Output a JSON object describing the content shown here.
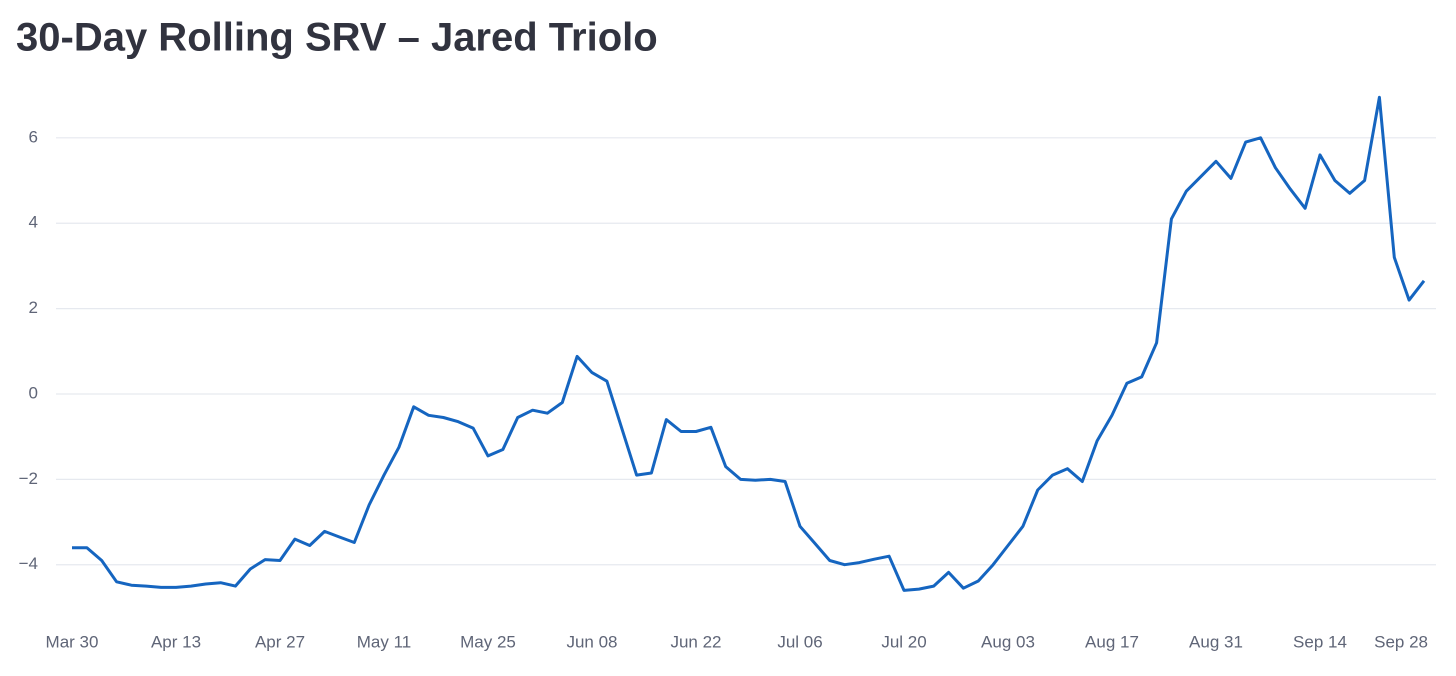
{
  "chart_data": {
    "type": "line",
    "title": "30-Day Rolling SRV – Jared Triolo",
    "x": [
      "Mar 30",
      "Apr 01",
      "Apr 03",
      "Apr 05",
      "Apr 07",
      "Apr 09",
      "Apr 11",
      "Apr 13",
      "Apr 15",
      "Apr 17",
      "Apr 19",
      "Apr 21",
      "Apr 23",
      "Apr 25",
      "Apr 27",
      "Apr 29",
      "May 01",
      "May 03",
      "May 05",
      "May 07",
      "May 09",
      "May 11",
      "May 13",
      "May 15",
      "May 17",
      "May 19",
      "May 21",
      "May 23",
      "May 25",
      "May 27",
      "May 29",
      "May 31",
      "Jun 02",
      "Jun 04",
      "Jun 06",
      "Jun 08",
      "Jun 10",
      "Jun 12",
      "Jun 14",
      "Jun 16",
      "Jun 18",
      "Jun 20",
      "Jun 22",
      "Jun 24",
      "Jun 26",
      "Jun 28",
      "Jun 30",
      "Jul 02",
      "Jul 04",
      "Jul 06",
      "Jul 08",
      "Jul 10",
      "Jul 12",
      "Jul 14",
      "Jul 16",
      "Jul 18",
      "Jul 20",
      "Jul 22",
      "Jul 24",
      "Jul 26",
      "Jul 28",
      "Jul 30",
      "Aug 01",
      "Aug 03",
      "Aug 05",
      "Aug 07",
      "Aug 09",
      "Aug 11",
      "Aug 13",
      "Aug 15",
      "Aug 17",
      "Aug 19",
      "Aug 21",
      "Aug 23",
      "Aug 25",
      "Aug 27",
      "Aug 29",
      "Aug 31",
      "Sep 02",
      "Sep 04",
      "Sep 06",
      "Sep 08",
      "Sep 10",
      "Sep 12",
      "Sep 14",
      "Sep 16",
      "Sep 18",
      "Sep 20",
      "Sep 22",
      "Sep 24",
      "Sep 26",
      "Sep 28"
    ],
    "series": [
      {
        "name": "SRV",
        "color": "#1565c0",
        "values": [
          -3.6,
          -3.6,
          -3.9,
          -4.4,
          -4.48,
          -4.5,
          -4.53,
          -4.53,
          -4.5,
          -4.45,
          -4.42,
          -4.5,
          -4.1,
          -3.88,
          -3.9,
          -3.4,
          -3.55,
          -3.22,
          -3.35,
          -3.48,
          -2.6,
          -1.9,
          -1.25,
          -0.3,
          -0.5,
          -0.55,
          -0.65,
          -0.8,
          -1.45,
          -1.3,
          -0.55,
          -0.38,
          -0.45,
          -0.2,
          0.88,
          0.5,
          0.3,
          -0.8,
          -1.9,
          -1.85,
          -0.6,
          -0.88,
          -0.88,
          -0.78,
          -1.7,
          -2.0,
          -2.02,
          -2.0,
          -2.05,
          -3.1,
          -3.5,
          -3.9,
          -4.0,
          -3.95,
          -3.87,
          -3.8,
          -4.6,
          -4.57,
          -4.5,
          -4.18,
          -4.55,
          -4.38,
          -4.0,
          -3.55,
          -3.1,
          -2.25,
          -1.9,
          -1.75,
          -2.05,
          -1.1,
          -0.5,
          0.25,
          0.4,
          1.2,
          4.1,
          4.75,
          5.1,
          5.45,
          5.05,
          5.9,
          6.0,
          5.3,
          4.8,
          4.35,
          5.6,
          5.0,
          4.7,
          5.0,
          6.95,
          3.2,
          2.2,
          2.65
        ]
      }
    ],
    "xticks": [
      "Mar 30",
      "Apr 13",
      "Apr 27",
      "May 11",
      "May 25",
      "Jun 08",
      "Jun 22",
      "Jul 06",
      "Jul 20",
      "Aug 03",
      "Aug 17",
      "Aug 31",
      "Sep 14",
      "Sep 28"
    ],
    "ylim": [
      -5.06,
      7.2
    ],
    "yticks": [
      {
        "value": -4,
        "label": "−4"
      },
      {
        "value": -2,
        "label": "−2"
      },
      0,
      2,
      4,
      6
    ],
    "grid": true
  }
}
